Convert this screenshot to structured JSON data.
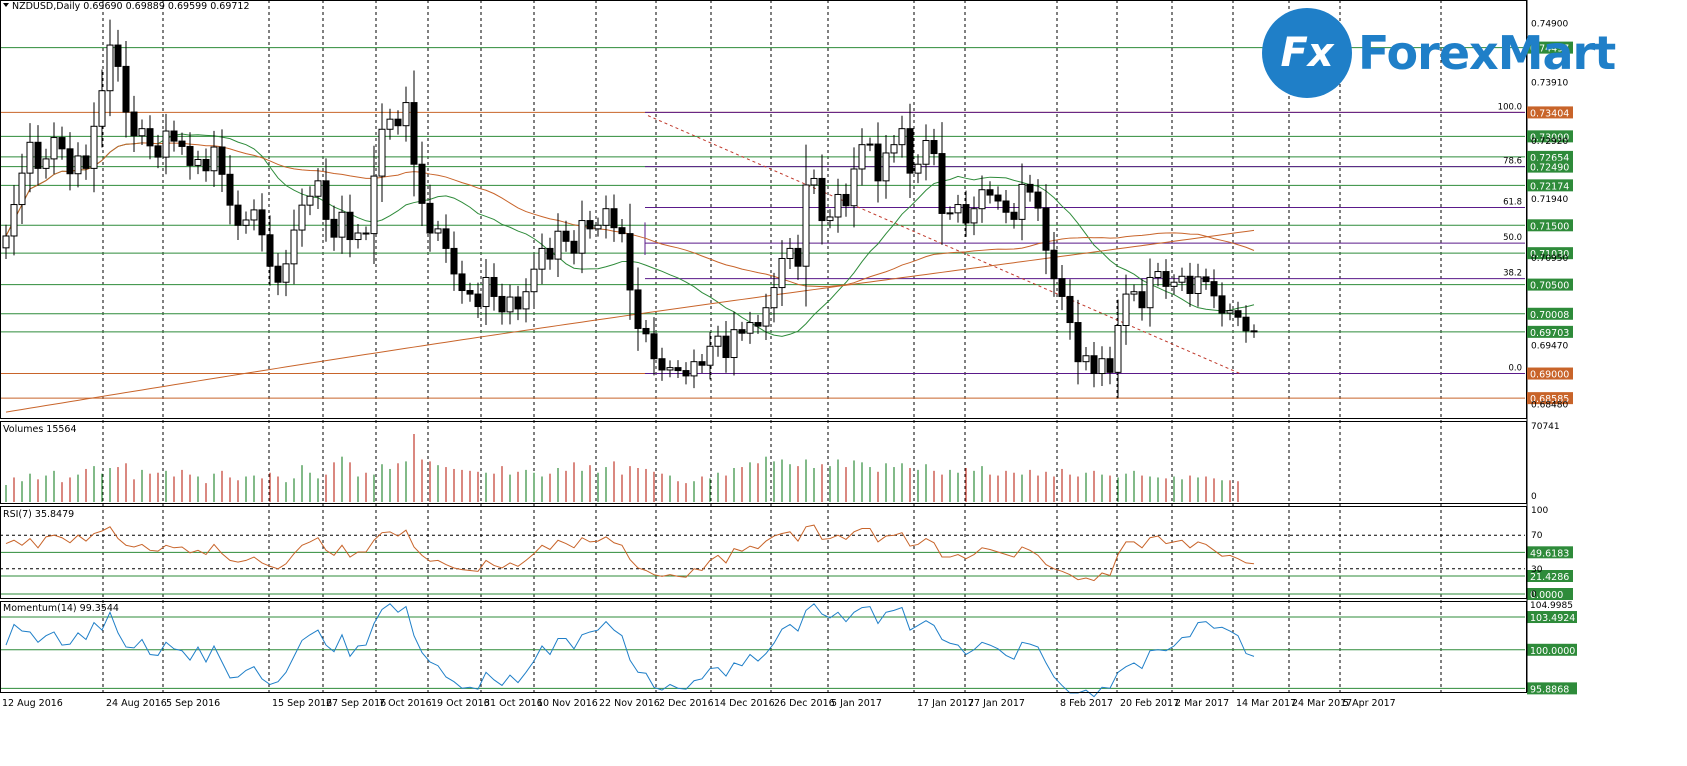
{
  "colors": {
    "grid": "#000000",
    "green_line": "#2e8b3a",
    "orange_line": "#c86a2a",
    "purple_line": "#5a1a8a",
    "ma_fast": "#2e8b3a",
    "ma_mid": "#c8642a",
    "ma_slow": "#c8642a",
    "volume_up": "#2e8b3a",
    "volume_down": "#c0392b",
    "rsi": "#c8642a",
    "momentum": "#1f7fc8",
    "logo_blue": "#1f7fc8",
    "candle": "#000000"
  },
  "logo": {
    "badge": "Fx",
    "name": "ForexMart"
  },
  "chart_data": [
    {
      "type": "candlestick",
      "title": "NZDUSD,Daily  0.69690 0.69889 0.69599 0.69712",
      "ylim": [
        0.6825,
        0.753
      ],
      "x_labels": [
        "12 Aug 2016",
        "24 Aug 2016",
        "5 Sep 2016",
        "15 Sep 2016",
        "27 Sep 2016",
        "7 Oct 2016",
        "19 Oct 2016",
        "31 Oct 2016",
        "10 Nov 2016",
        "22 Nov 2016",
        "2 Dec 2016",
        "14 Dec 2016",
        "26 Dec 2016",
        "5 Jan 2017",
        "17 Jan 2017",
        "27 Jan 2017",
        "8 Feb 2017",
        "20 Feb 2017",
        "2 Mar 2017",
        "14 Mar 2017",
        "24 Mar 2017",
        "5 Apr 2017"
      ],
      "y_ticks": [
        "0.74900",
        "0.73910",
        "0.72920",
        "0.71940",
        "0.70950",
        "0.69470",
        "0.68480"
      ],
      "close": [
        0.7132,
        0.7185,
        0.7238,
        0.729,
        0.7246,
        0.7262,
        0.7298,
        0.7279,
        0.7237,
        0.7267,
        0.7246,
        0.7317,
        0.7377,
        0.7454,
        0.7418,
        0.7341,
        0.7301,
        0.7313,
        0.7284,
        0.7265,
        0.7309,
        0.7292,
        0.7283,
        0.7251,
        0.7261,
        0.7242,
        0.7282,
        0.7236,
        0.7184,
        0.715,
        0.7159,
        0.7176,
        0.7134,
        0.7081,
        0.7054,
        0.7085,
        0.7142,
        0.7184,
        0.7199,
        0.7225,
        0.716,
        0.713,
        0.7172,
        0.7126,
        0.7137,
        0.7136,
        0.7233,
        0.7312,
        0.7329,
        0.7318,
        0.7357,
        0.7253,
        0.7187,
        0.7137,
        0.7144,
        0.7111,
        0.7068,
        0.704,
        0.7034,
        0.7013,
        0.7062,
        0.703,
        0.7004,
        0.7029,
        0.7009,
        0.7038,
        0.7076,
        0.7111,
        0.7093,
        0.714,
        0.7123,
        0.7103,
        0.7158,
        0.7144,
        0.715,
        0.7178,
        0.7146,
        0.7136,
        0.7041,
        0.6976,
        0.6967,
        0.6925,
        0.6906,
        0.691,
        0.6905,
        0.6896,
        0.692,
        0.6914,
        0.6946,
        0.6963,
        0.6927,
        0.6974,
        0.6968,
        0.6986,
        0.698,
        0.7011,
        0.7045,
        0.7094,
        0.7111,
        0.7081,
        0.7218,
        0.7229,
        0.7158,
        0.7164,
        0.7202,
        0.7183,
        0.7245,
        0.7286,
        0.7287,
        0.7225,
        0.7272,
        0.7286,
        0.7313,
        0.7238,
        0.7253,
        0.7293,
        0.7271,
        0.717,
        0.7171,
        0.7185,
        0.7154,
        0.7178,
        0.721,
        0.7201,
        0.7191,
        0.7172,
        0.716,
        0.7219,
        0.7206,
        0.7179,
        0.7108,
        0.706,
        0.703,
        0.6986,
        0.692,
        0.693,
        0.69,
        0.6925,
        0.6902,
        0.6981,
        0.7034,
        0.7038,
        0.7011,
        0.7062,
        0.7072,
        0.7047,
        0.7054,
        0.7064,
        0.7035,
        0.7063,
        0.7055,
        0.7031,
        0.7002,
        0.7006,
        0.6995,
        0.6972,
        0.6971
      ],
      "moving_averages": [
        {
          "color": "#2e8b3a",
          "period": 20
        },
        {
          "color": "#c8642a",
          "period": 50
        },
        {
          "color": "#c8642a",
          "period": 200
        }
      ],
      "horizontal_levels": [
        {
          "value": 0.74497,
          "label": "0.74497",
          "color": "#2e8b3a",
          "label_bg": "#2e8b3a"
        },
        {
          "value": 0.73404,
          "label": "0.73404",
          "color": "#c8642a",
          "label_bg": "#c8642a"
        },
        {
          "value": 0.73,
          "label": "0.73000",
          "color": "#2e8b3a",
          "label_bg": "#2e8b3a"
        },
        {
          "value": 0.72654,
          "label": "0.72654",
          "color": "#2e8b3a",
          "label_bg": "#2e8b3a"
        },
        {
          "value": 0.7249,
          "label": "0.72490",
          "color": "#2e8b3a",
          "label_bg": "#2e8b3a"
        },
        {
          "value": 0.72174,
          "label": "0.72174",
          "color": "#2e8b3a",
          "label_bg": "#2e8b3a"
        },
        {
          "value": 0.715,
          "label": "0.71500",
          "color": "#2e8b3a",
          "label_bg": "#2e8b3a"
        },
        {
          "value": 0.7103,
          "label": "0.71030",
          "color": "#2e8b3a",
          "label_bg": "#2e8b3a"
        },
        {
          "value": 0.705,
          "label": "0.70500",
          "color": "#2e8b3a",
          "label_bg": "#2e8b3a"
        },
        {
          "value": 0.70008,
          "label": "0.70008",
          "color": "#2e8b3a",
          "label_bg": "#2e8b3a"
        },
        {
          "value": 0.69703,
          "label": "0.69703",
          "color": "#2e8b3a",
          "label_bg": "#2e8b3a"
        },
        {
          "value": 0.69,
          "label": "0.69000",
          "color": "#c8642a",
          "label_bg": "#c8642a"
        },
        {
          "value": 0.68585,
          "label": "0.68585",
          "color": "#c8642a",
          "label_bg": "#c8642a"
        }
      ],
      "fibonacci": [
        {
          "level": "100.0",
          "value": 0.73404
        },
        {
          "level": "78.6",
          "value": 0.7249
        },
        {
          "level": "61.8",
          "value": 0.718
        },
        {
          "level": "50.0",
          "value": 0.712
        },
        {
          "level": "38.2",
          "value": 0.706
        },
        {
          "level": "0.0",
          "value": 0.69
        }
      ]
    },
    {
      "type": "bar",
      "title": "Volumes 15564",
      "ylim": [
        0,
        70741
      ],
      "y_ticks": [
        "70741",
        "0"
      ],
      "values": [
        18,
        26,
        22,
        30,
        24,
        28,
        33,
        21,
        26,
        29,
        35,
        38,
        30,
        36,
        37,
        41,
        24,
        34,
        30,
        31,
        33,
        27,
        34,
        29,
        27,
        20,
        30,
        33,
        26,
        23,
        27,
        28,
        25,
        31,
        27,
        21,
        25,
        39,
        31,
        25,
        29,
        42,
        48,
        42,
        27,
        31,
        29,
        40,
        35,
        41,
        43,
        72,
        45,
        43,
        39,
        37,
        35,
        34,
        33,
        32,
        31,
        30,
        38,
        29,
        32,
        34,
        31,
        27,
        30,
        36,
        33,
        42,
        33,
        39,
        31,
        37,
        43,
        29,
        38,
        36,
        35,
        32,
        30,
        28,
        22,
        20,
        22,
        27,
        25,
        31,
        28,
        36,
        37,
        42,
        41,
        48,
        43,
        45,
        40,
        38,
        45,
        36,
        40,
        38,
        45,
        37,
        44,
        42,
        37,
        32,
        41,
        37,
        41,
        36,
        34,
        40,
        33,
        29,
        34,
        31,
        36,
        33,
        38,
        29,
        28,
        33,
        31,
        29,
        34,
        28,
        32,
        27,
        35,
        29,
        27,
        31,
        33,
        29,
        28,
        26,
        30,
        33,
        28,
        27,
        26,
        25,
        27,
        24,
        28,
        26,
        27,
        25,
        23,
        23,
        22
      ],
      "up_down": [
        1,
        0,
        1,
        1,
        0,
        1,
        1,
        0,
        0,
        1,
        0,
        1,
        1,
        1,
        0,
        0,
        0,
        1,
        0,
        0,
        1,
        0,
        0,
        0,
        1,
        0,
        1,
        0,
        0,
        0,
        1,
        1,
        0,
        0,
        0,
        1,
        1,
        1,
        1,
        1,
        0,
        0,
        1,
        0,
        1,
        0,
        1,
        1,
        1,
        0,
        1,
        0,
        0,
        0,
        1,
        0,
        0,
        0,
        0,
        0,
        1,
        0,
        0,
        1,
        0,
        1,
        1,
        1,
        0,
        1,
        0,
        0,
        1,
        0,
        1,
        1,
        0,
        0,
        0,
        0,
        0,
        0,
        0,
        1,
        0,
        0,
        1,
        0,
        1,
        1,
        0,
        1,
        0,
        1,
        0,
        1,
        1,
        1,
        1,
        0,
        1,
        1,
        0,
        1,
        1,
        0,
        1,
        1,
        1,
        0,
        1,
        1,
        1,
        0,
        1,
        1,
        0,
        0,
        1,
        1,
        0,
        1,
        1,
        0,
        0,
        0,
        0,
        1,
        0,
        0,
        0,
        0,
        0,
        0,
        0,
        1,
        0,
        1,
        0,
        1,
        1,
        1,
        0,
        1,
        1,
        0,
        1,
        1,
        0,
        1,
        0,
        0,
        1,
        0,
        0,
        0,
        0
      ]
    },
    {
      "type": "line",
      "title": "RSI(7) 35.8479",
      "ylim": [
        0,
        100
      ],
      "y_ticks": [
        "100",
        "70",
        "30",
        "0"
      ],
      "levels": [
        {
          "value": 49.6183,
          "label": "49.6183"
        },
        {
          "value": 21.4286,
          "label": "21.4286"
        },
        {
          "value": 0.0,
          "label": "0.0000"
        }
      ],
      "values": [
        60,
        64,
        58,
        66,
        55,
        68,
        70,
        67,
        61,
        70,
        63,
        72,
        75,
        80,
        66,
        58,
        56,
        59,
        52,
        51,
        58,
        55,
        56,
        49,
        52,
        47,
        59,
        48,
        40,
        38,
        40,
        44,
        37,
        33,
        30,
        36,
        48,
        58,
        62,
        67,
        52,
        46,
        58,
        44,
        50,
        50,
        64,
        73,
        74,
        69,
        76,
        56,
        46,
        39,
        40,
        35,
        31,
        29,
        28,
        27,
        40,
        34,
        31,
        37,
        33,
        40,
        48,
        58,
        53,
        64,
        60,
        55,
        67,
        62,
        63,
        68,
        61,
        58,
        41,
        31,
        28,
        23,
        21,
        23,
        21,
        20,
        30,
        28,
        40,
        46,
        37,
        54,
        51,
        57,
        54,
        63,
        69,
        72,
        74,
        63,
        80,
        82,
        65,
        66,
        70,
        65,
        74,
        78,
        78,
        62,
        69,
        70,
        73,
        57,
        59,
        66,
        61,
        44,
        44,
        47,
        42,
        47,
        55,
        53,
        50,
        47,
        44,
        56,
        52,
        46,
        35,
        30,
        27,
        23,
        17,
        19,
        16,
        25,
        22,
        47,
        62,
        62,
        55,
        67,
        69,
        60,
        62,
        64,
        55,
        62,
        59,
        52,
        45,
        46,
        42,
        37,
        36
      ]
    },
    {
      "type": "line",
      "title": "Momentum(14) 99.3544",
      "ylim": [
        95.5,
        105.2
      ],
      "y_ticks": [
        "104.9985",
        "103.4924",
        "100.0000",
        "95.8868"
      ],
      "levels": [
        {
          "value": 103.4924,
          "label": "103.4924"
        },
        {
          "value": 100.0,
          "label": "100.0000"
        },
        {
          "value": 95.8868,
          "label": "95.8868"
        }
      ],
      "values": [
        100.5,
        102.7,
        102.0,
        101.9,
        100.8,
        101.5,
        101.9,
        100.5,
        100.6,
        101.8,
        101.1,
        102.9,
        102.1,
        104.0,
        101.8,
        100.3,
        100.2,
        101.1,
        99.5,
        99.4,
        100.8,
        100.1,
        99.9,
        98.9,
        100.3,
        98.7,
        100.4,
        98.7,
        97.0,
        97.1,
        97.8,
        98.2,
        96.9,
        96.3,
        96.6,
        97.6,
        99.3,
        101.0,
        101.6,
        102.1,
        100.5,
        99.8,
        101.6,
        99.3,
        100.4,
        100.5,
        102.8,
        104.3,
        104.9,
        104.0,
        104.6,
        101.5,
        99.7,
        98.7,
        98.3,
        97.1,
        96.6,
        95.9,
        96.0,
        95.8,
        97.6,
        96.8,
        96.2,
        97.3,
        96.5,
        97.6,
        98.8,
        100.4,
        99.5,
        101.2,
        101.2,
        100.1,
        101.6,
        101.9,
        102.1,
        103.0,
        102.1,
        101.5,
        98.9,
        97.6,
        97.5,
        96.0,
        95.7,
        96.3,
        95.9,
        95.8,
        96.7,
        96.9,
        98.0,
        98.1,
        97.2,
        98.6,
        98.3,
        99.5,
        98.8,
        99.6,
        100.7,
        102.2,
        102.7,
        102.0,
        104.2,
        104.9,
        103.8,
        103.4,
        104.0,
        103.0,
        104.0,
        104.5,
        104.6,
        102.8,
        104.0,
        104.2,
        104.5,
        102.1,
        102.6,
        103.1,
        102.6,
        101.1,
        100.7,
        100.5,
        99.5,
        100.0,
        100.8,
        100.5,
        100.1,
        99.4,
        99.0,
        100.8,
        100.6,
        100.3,
        98.6,
        97.1,
        96.2,
        95.4,
        95.4,
        95.7,
        95.0,
        96.0,
        95.9,
        97.6,
        98.2,
        98.6,
        98.0,
        99.9,
        100.0,
        99.9,
        100.4,
        101.3,
        101.4,
        102.9,
        103.0,
        102.3,
        102.4,
        102.0,
        101.5,
        99.6,
        99.3
      ]
    }
  ]
}
